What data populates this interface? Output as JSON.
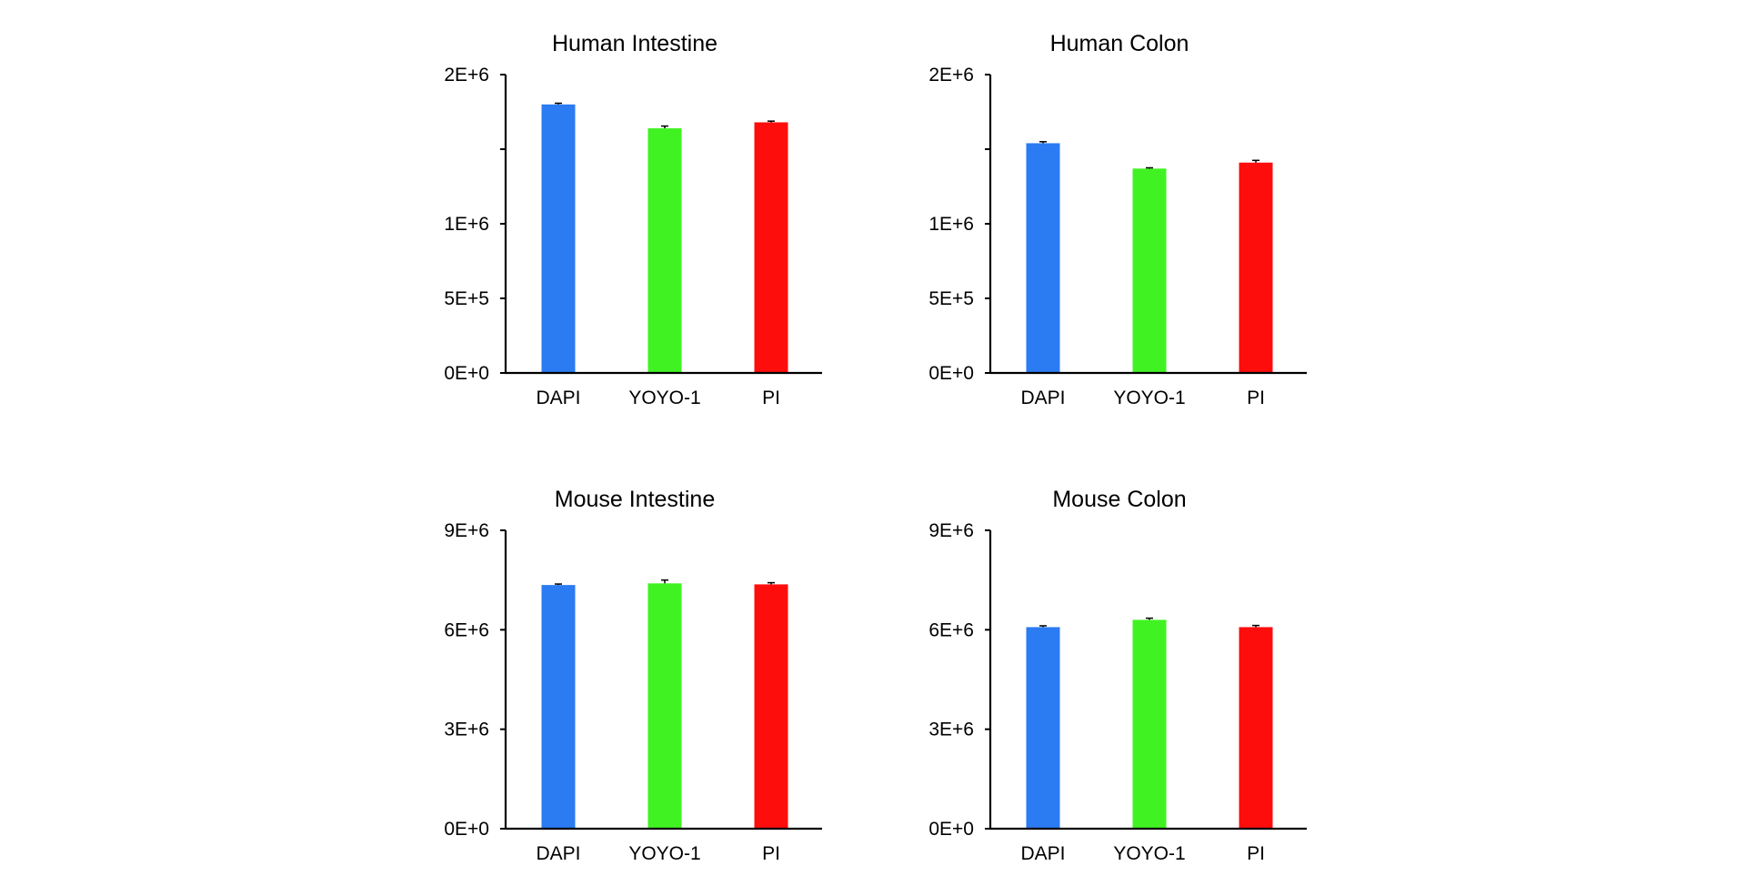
{
  "chart_data": [
    {
      "type": "bar",
      "title": "Human Intestine",
      "categories": [
        "DAPI",
        "YOYO-1",
        "PI"
      ],
      "values": [
        1800000,
        1640000,
        1680000
      ],
      "errors": [
        8000,
        15000,
        8000
      ],
      "bar_colors": [
        "#2b7bf2",
        "#41f223",
        "#fe0d0d"
      ],
      "yticks": [
        0,
        500000,
        1000000,
        1500000,
        2000000
      ],
      "ytick_labels": [
        "0E+0",
        "5E+5",
        "1E+6",
        "",
        "2E+6"
      ],
      "ylim": [
        0,
        2000000
      ],
      "xlabel": "",
      "ylabel": ""
    },
    {
      "type": "bar",
      "title": "Human Colon",
      "categories": [
        "DAPI",
        "YOYO-1",
        "PI"
      ],
      "values": [
        1540000,
        1370000,
        1410000
      ],
      "errors": [
        10000,
        5000,
        15000
      ],
      "bar_colors": [
        "#2b7bf2",
        "#41f223",
        "#fe0d0d"
      ],
      "yticks": [
        0,
        500000,
        1000000,
        1500000,
        2000000
      ],
      "ytick_labels": [
        "0E+0",
        "5E+5",
        "1E+6",
        "",
        "2E+6"
      ],
      "ylim": [
        0,
        2000000
      ],
      "xlabel": "",
      "ylabel": ""
    },
    {
      "type": "bar",
      "title": "Mouse Intestine",
      "categories": [
        "DAPI",
        "YOYO-1",
        "PI"
      ],
      "values": [
        7350000,
        7400000,
        7370000
      ],
      "errors": [
        30000,
        100000,
        50000
      ],
      "bar_colors": [
        "#2b7bf2",
        "#41f223",
        "#fe0d0d"
      ],
      "yticks": [
        0,
        3000000,
        6000000,
        9000000
      ],
      "ytick_labels": [
        "0E+0",
        "3E+6",
        "6E+6",
        "9E+6"
      ],
      "ylim": [
        0,
        9000000
      ],
      "xlabel": "",
      "ylabel": ""
    },
    {
      "type": "bar",
      "title": "Mouse Colon",
      "categories": [
        "DAPI",
        "YOYO-1",
        "PI"
      ],
      "values": [
        6080000,
        6300000,
        6080000
      ],
      "errors": [
        40000,
        50000,
        50000
      ],
      "bar_colors": [
        "#2b7bf2",
        "#41f223",
        "#fe0d0d"
      ],
      "yticks": [
        0,
        3000000,
        6000000,
        9000000
      ],
      "ytick_labels": [
        "0E+0",
        "3E+6",
        "6E+6",
        "9E+6"
      ],
      "ylim": [
        0,
        9000000
      ],
      "xlabel": "",
      "ylabel": ""
    }
  ]
}
